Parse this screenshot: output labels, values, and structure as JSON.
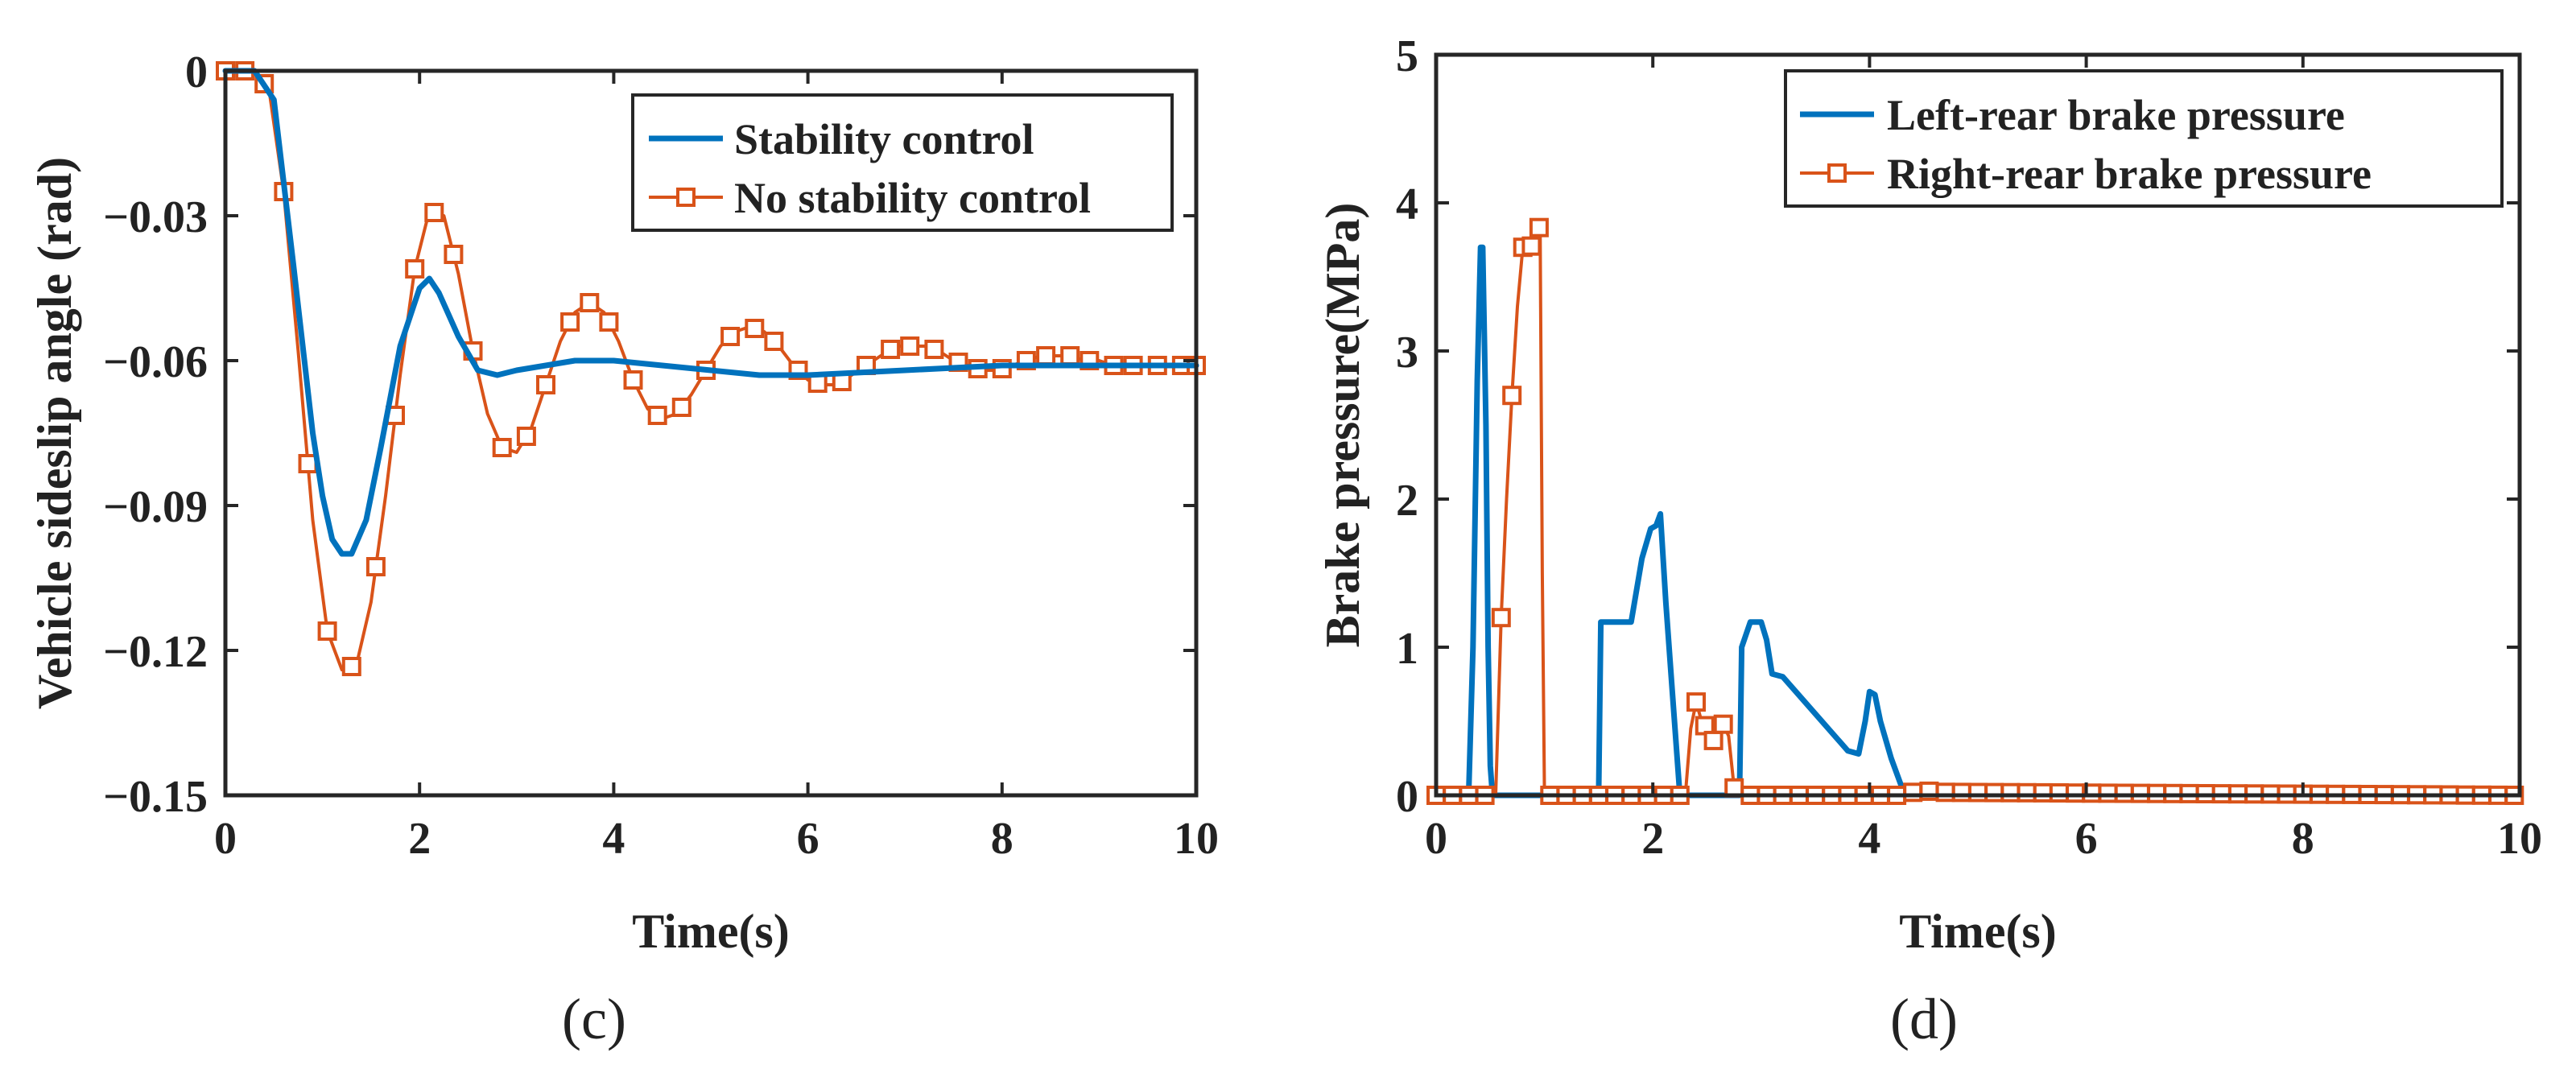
{
  "chart_data": [
    {
      "id": "c",
      "type": "line",
      "caption": "(c)",
      "xlabel": "Time(s)",
      "ylabel": "Vehicle sideslip angle (rad)",
      "xlim": [
        0,
        10
      ],
      "ylim": [
        -0.15,
        0
      ],
      "xticks": [
        "0",
        "2",
        "4",
        "6",
        "8",
        "10"
      ],
      "yticks": [
        "0",
        "−0.03",
        "−0.06",
        "−0.09",
        "−0.12",
        "−0.15"
      ],
      "xtick_values": [
        0,
        2,
        4,
        6,
        8,
        10
      ],
      "ytick_values": [
        0,
        -0.03,
        -0.06,
        -0.09,
        -0.12,
        -0.15
      ],
      "grid": false,
      "legend_position": "top-right",
      "series": [
        {
          "name": "Stability control",
          "color": "#0072BD",
          "marker": "none",
          "x": [
            0,
            0.3,
            0.5,
            0.7,
            0.9,
            1.0,
            1.1,
            1.2,
            1.3,
            1.45,
            1.6,
            1.8,
            2.0,
            2.1,
            2.2,
            2.4,
            2.6,
            2.8,
            3.0,
            3.3,
            3.6,
            4.0,
            4.5,
            5.0,
            5.5,
            6.0,
            7.0,
            8.0,
            9.0,
            10.0
          ],
          "y": [
            0,
            0,
            -0.006,
            -0.04,
            -0.075,
            -0.088,
            -0.097,
            -0.1,
            -0.1,
            -0.093,
            -0.078,
            -0.057,
            -0.045,
            -0.043,
            -0.046,
            -0.055,
            -0.062,
            -0.063,
            -0.062,
            -0.061,
            -0.06,
            -0.06,
            -0.061,
            -0.062,
            -0.063,
            -0.063,
            -0.062,
            -0.061,
            -0.061,
            -0.061
          ]
        },
        {
          "name": "No stability control",
          "color": "#D95319",
          "marker": "square",
          "x": [
            0,
            0.15,
            0.3,
            0.45,
            0.6,
            0.75,
            0.9,
            1.05,
            1.2,
            1.35,
            1.5,
            1.65,
            1.8,
            1.95,
            2.1,
            2.25,
            2.4,
            2.55,
            2.7,
            2.85,
            3.0,
            3.15,
            3.3,
            3.45,
            3.6,
            3.75,
            3.9,
            4.05,
            4.2,
            4.35,
            4.5,
            4.65,
            4.8,
            4.95,
            5.1,
            5.25,
            5.4,
            5.55,
            5.7,
            5.85,
            6.0,
            6.15,
            6.3,
            6.45,
            6.6,
            6.75,
            6.9,
            7.05,
            7.2,
            7.35,
            7.5,
            7.65,
            7.8,
            7.95,
            8.1,
            8.25,
            8.4,
            8.55,
            8.7,
            8.85,
            9.0,
            9.15,
            9.3,
            9.45,
            9.6,
            9.75,
            9.9,
            10.0
          ],
          "y": [
            0,
            0,
            0,
            -0.004,
            -0.025,
            -0.058,
            -0.093,
            -0.116,
            -0.124,
            -0.123,
            -0.11,
            -0.088,
            -0.063,
            -0.041,
            -0.029,
            -0.03,
            -0.042,
            -0.058,
            -0.071,
            -0.078,
            -0.079,
            -0.074,
            -0.065,
            -0.056,
            -0.05,
            -0.048,
            -0.05,
            -0.056,
            -0.064,
            -0.07,
            -0.072,
            -0.071,
            -0.067,
            -0.062,
            -0.057,
            -0.054,
            -0.053,
            -0.054,
            -0.057,
            -0.061,
            -0.064,
            -0.065,
            -0.065,
            -0.063,
            -0.061,
            -0.059,
            -0.057,
            -0.057,
            -0.057,
            -0.058,
            -0.06,
            -0.061,
            -0.062,
            -0.062,
            -0.061,
            -0.06,
            -0.059,
            -0.059,
            -0.059,
            -0.06,
            -0.06,
            -0.061,
            -0.061,
            -0.061,
            -0.061,
            -0.061,
            -0.061,
            -0.061
          ],
          "marker_x": [
            0,
            0.2,
            0.4,
            0.6,
            0.85,
            1.05,
            1.3,
            1.55,
            1.75,
            1.95,
            2.15,
            2.35,
            2.55,
            2.85,
            3.1,
            3.3,
            3.55,
            3.75,
            3.95,
            4.2,
            4.45,
            4.7,
            4.95,
            5.2,
            5.45,
            5.65,
            5.9,
            6.1,
            6.35,
            6.6,
            6.85,
            7.05,
            7.3,
            7.55,
            7.75,
            8.0,
            8.25,
            8.45,
            8.7,
            8.9,
            9.15,
            9.35,
            9.6,
            9.85,
            10.0
          ]
        }
      ]
    },
    {
      "id": "d",
      "type": "line",
      "caption": "(d)",
      "xlabel": "Time(s)",
      "ylabel": "Brake pressure(MPa)",
      "xlim": [
        0,
        10
      ],
      "ylim": [
        0,
        5
      ],
      "xticks": [
        "0",
        "2",
        "4",
        "6",
        "8",
        "10"
      ],
      "yticks": [
        "0",
        "1",
        "2",
        "3",
        "4",
        "5"
      ],
      "xtick_values": [
        0,
        2,
        4,
        6,
        8,
        10
      ],
      "ytick_values": [
        0,
        1,
        2,
        3,
        4,
        5
      ],
      "grid": false,
      "legend_position": "top-right",
      "series": [
        {
          "name": "Left-rear brake pressure",
          "color": "#0072BD",
          "marker": "none",
          "x": [
            0,
            0.3,
            0.34,
            0.38,
            0.41,
            0.43,
            0.46,
            0.48,
            0.5,
            0.52,
            1.5,
            1.52,
            1.8,
            1.9,
            1.98,
            2.03,
            2.07,
            2.12,
            2.18,
            2.25,
            2.8,
            2.82,
            2.9,
            3.0,
            3.05,
            3.1,
            3.2,
            3.5,
            3.8,
            3.9,
            3.96,
            4.0,
            4.05,
            4.1,
            4.2,
            4.3,
            4.35,
            10.0
          ],
          "y": [
            0,
            0,
            1.0,
            2.8,
            3.7,
            3.7,
            2.5,
            1.0,
            0.2,
            0,
            0,
            1.17,
            1.17,
            1.6,
            1.8,
            1.82,
            1.9,
            1.3,
            0.7,
            0,
            0,
            1.0,
            1.17,
            1.17,
            1.05,
            0.82,
            0.8,
            0.55,
            0.3,
            0.28,
            0.5,
            0.7,
            0.68,
            0.5,
            0.25,
            0.05,
            0,
            0
          ]
        },
        {
          "name": "Right-rear brake pressure",
          "color": "#D95319",
          "marker": "square",
          "x": [
            0,
            0.55,
            0.6,
            0.65,
            0.7,
            0.75,
            0.8,
            0.85,
            0.9,
            0.93,
            0.96,
            0.98,
            1.0,
            2.3,
            2.35,
            2.4,
            2.45,
            2.5,
            2.55,
            2.6,
            2.65,
            2.7,
            2.75,
            2.8,
            2.85,
            4.3,
            4.4,
            4.5,
            4.7,
            10.0
          ],
          "y": [
            0,
            0,
            1.2,
            2.0,
            2.7,
            3.3,
            3.7,
            3.72,
            3.7,
            3.8,
            3.85,
            1.5,
            0,
            0,
            0.45,
            0.63,
            0.5,
            0.45,
            0.35,
            0.45,
            0.48,
            0.4,
            0.05,
            0.03,
            0,
            0,
            0.02,
            0.03,
            0.02,
            0
          ],
          "marker_x": [
            0,
            0.15,
            0.3,
            0.45,
            0.6,
            0.7,
            0.8,
            0.88,
            0.95,
            1.05,
            1.2,
            1.35,
            1.5,
            1.65,
            1.8,
            1.95,
            2.1,
            2.25,
            2.4,
            2.48,
            2.56,
            2.65,
            2.75,
            2.9,
            3.05,
            3.2,
            3.35,
            3.5,
            3.65,
            3.8,
            3.95,
            4.1,
            4.25,
            4.4,
            4.55,
            4.7,
            4.85,
            5.0,
            5.15,
            5.3,
            5.45,
            5.6,
            5.75,
            5.9,
            6.05,
            6.2,
            6.35,
            6.5,
            6.65,
            6.8,
            6.95,
            7.1,
            7.25,
            7.4,
            7.55,
            7.7,
            7.85,
            8.0,
            8.15,
            8.3,
            8.45,
            8.6,
            8.75,
            8.9,
            9.05,
            9.2,
            9.35,
            9.5,
            9.65,
            9.8,
            9.95
          ]
        }
      ]
    }
  ]
}
